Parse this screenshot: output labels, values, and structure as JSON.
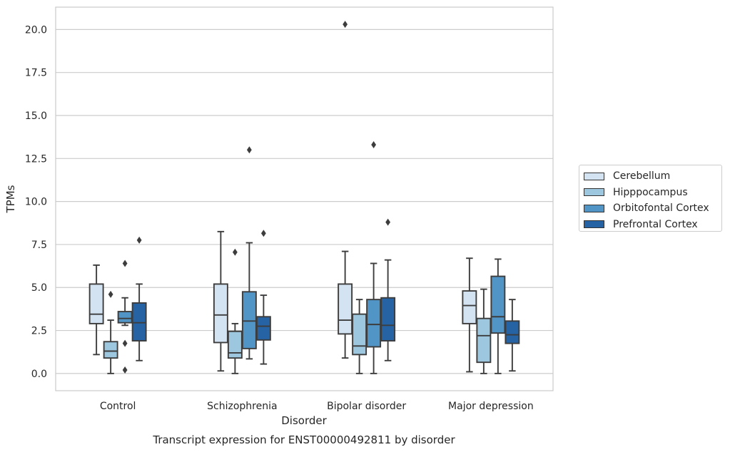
{
  "chart_data": {
    "type": "boxplot",
    "title": "Transcript expression for ENST00000492811 by disorder",
    "xlabel": "Disorder",
    "ylabel": "TPMs",
    "ylim": [
      -1.0,
      21.3
    ],
    "yticks": [
      "0.0",
      "2.5",
      "5.0",
      "7.5",
      "10.0",
      "12.5",
      "15.0",
      "17.5",
      "20.0"
    ],
    "ytick_values": [
      0,
      2.5,
      5,
      7.5,
      10,
      12.5,
      15,
      17.5,
      20
    ],
    "grid": "horizontal",
    "legend_position": "right",
    "categories": [
      "Control",
      "Schizophrenia",
      "Bipolar disorder",
      "Major depression"
    ],
    "series": [
      {
        "name": "Cerebellum",
        "color": "#d4e3f2",
        "boxes": [
          {
            "whislo": 1.1,
            "q1": 2.9,
            "med": 3.45,
            "q3": 5.2,
            "whishi": 6.3,
            "fliers": []
          },
          {
            "whislo": 0.15,
            "q1": 1.8,
            "med": 3.4,
            "q3": 5.2,
            "whishi": 8.25,
            "fliers": []
          },
          {
            "whislo": 0.9,
            "q1": 2.3,
            "med": 3.1,
            "q3": 5.2,
            "whishi": 7.1,
            "fliers": [
              20.3
            ]
          },
          {
            "whislo": 0.1,
            "q1": 2.9,
            "med": 3.95,
            "q3": 4.8,
            "whishi": 6.7,
            "fliers": []
          }
        ]
      },
      {
        "name": "Hipppocampus",
        "color": "#9dc7df",
        "boxes": [
          {
            "whislo": 0.0,
            "q1": 0.9,
            "med": 1.3,
            "q3": 1.85,
            "whishi": 3.1,
            "fliers": [
              4.6
            ]
          },
          {
            "whislo": 0.0,
            "q1": 0.9,
            "med": 1.2,
            "q3": 2.45,
            "whishi": 2.9,
            "fliers": [
              7.05
            ]
          },
          {
            "whislo": 0.0,
            "q1": 1.1,
            "med": 1.6,
            "q3": 3.45,
            "whishi": 4.3,
            "fliers": []
          },
          {
            "whislo": 0.0,
            "q1": 0.65,
            "med": 2.2,
            "q3": 3.2,
            "whishi": 4.9,
            "fliers": []
          }
        ]
      },
      {
        "name": "Orbitofontal Cortex",
        "color": "#5195c6",
        "boxes": [
          {
            "whislo": 2.8,
            "q1": 2.95,
            "med": 3.2,
            "q3": 3.6,
            "whishi": 4.4,
            "fliers": [
              6.4,
              1.75,
              0.2
            ]
          },
          {
            "whislo": 0.85,
            "q1": 1.45,
            "med": 3.05,
            "q3": 4.75,
            "whishi": 7.6,
            "fliers": [
              13.0
            ]
          },
          {
            "whislo": 0.0,
            "q1": 1.55,
            "med": 2.85,
            "q3": 4.3,
            "whishi": 6.4,
            "fliers": [
              13.3
            ]
          },
          {
            "whislo": 0.0,
            "q1": 2.35,
            "med": 3.3,
            "q3": 5.65,
            "whishi": 6.65,
            "fliers": []
          }
        ]
      },
      {
        "name": "Prefrontal Cortex",
        "color": "#2563a4",
        "boxes": [
          {
            "whislo": 0.75,
            "q1": 1.9,
            "med": 2.95,
            "q3": 4.1,
            "whishi": 5.2,
            "fliers": [
              7.75
            ]
          },
          {
            "whislo": 0.55,
            "q1": 1.95,
            "med": 2.75,
            "q3": 3.3,
            "whishi": 4.55,
            "fliers": [
              8.15
            ]
          },
          {
            "whislo": 0.75,
            "q1": 1.9,
            "med": 2.8,
            "q3": 4.4,
            "whishi": 6.6,
            "fliers": [
              8.8
            ]
          },
          {
            "whislo": 0.15,
            "q1": 1.75,
            "med": 2.25,
            "q3": 3.05,
            "whishi": 4.3,
            "fliers": []
          }
        ]
      }
    ]
  }
}
